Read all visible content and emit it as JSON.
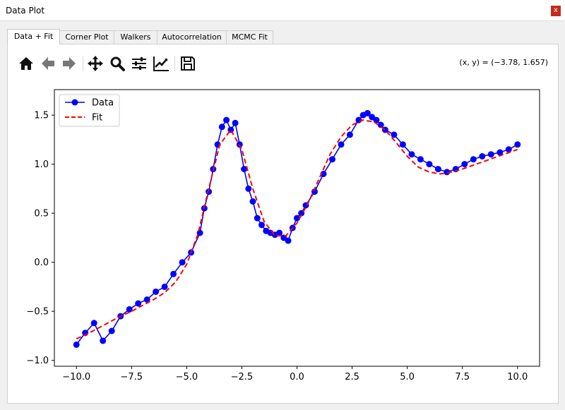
{
  "window": {
    "title": "Data Plot",
    "close_label": "x"
  },
  "tabs": [
    {
      "label": "Data + Fit",
      "active": true
    },
    {
      "label": "Corner Plot",
      "active": false
    },
    {
      "label": "Walkers",
      "active": false
    },
    {
      "label": "Autocorrelation",
      "active": false
    },
    {
      "label": "MCMC Fit",
      "active": false
    }
  ],
  "toolbar": {
    "buttons": [
      "home-icon",
      "back-icon",
      "forward-icon",
      "pan-icon",
      "zoom-icon",
      "configure-subplots-icon",
      "edit-axes-icon",
      "save-icon"
    ],
    "coords_readout": "(x, y) = (−3.78, 1.657)"
  },
  "chart_data": {
    "type": "line",
    "xlim": [
      -11,
      11
    ],
    "ylim": [
      -1.06,
      1.76
    ],
    "xticks": [
      -10.0,
      -7.5,
      -5.0,
      -2.5,
      0.0,
      2.5,
      5.0,
      7.5,
      10.0
    ],
    "xtick_labels": [
      "−10.0",
      "−7.5",
      "−5.0",
      "−2.5",
      "0.0",
      "2.5",
      "5.0",
      "7.5",
      "10.0"
    ],
    "yticks": [
      -1.0,
      -0.5,
      0.0,
      0.5,
      1.0,
      1.5
    ],
    "ytick_labels": [
      "−1.0",
      "−0.5",
      "0.0",
      "0.5",
      "1.0",
      "1.5"
    ],
    "grid": false,
    "legend": {
      "placement": "top-left",
      "entries": [
        "Data",
        "Fit"
      ]
    },
    "colors": {
      "data": "#0000ff",
      "fit": "#ff0000"
    },
    "series": [
      {
        "name": "Data",
        "style": "line-markers",
        "x": [
          -10.0,
          -9.6,
          -9.2,
          -8.8,
          -8.4,
          -8.0,
          -7.6,
          -7.2,
          -6.8,
          -6.4,
          -6.0,
          -5.6,
          -5.2,
          -4.8,
          -4.4,
          -4.2,
          -4.0,
          -3.8,
          -3.6,
          -3.4,
          -3.2,
          -3.0,
          -2.8,
          -2.6,
          -2.4,
          -2.2,
          -2.0,
          -1.8,
          -1.6,
          -1.4,
          -1.2,
          -1.0,
          -0.8,
          -0.6,
          -0.4,
          -0.2,
          0.0,
          0.2,
          0.4,
          0.8,
          1.2,
          1.6,
          2.0,
          2.4,
          2.8,
          3.0,
          3.2,
          3.4,
          3.6,
          3.8,
          4.0,
          4.4,
          4.8,
          5.2,
          5.6,
          6.0,
          6.4,
          6.8,
          7.2,
          7.6,
          8.0,
          8.4,
          8.8,
          9.2,
          9.6,
          10.0
        ],
        "y": [
          -0.84,
          -0.72,
          -0.62,
          -0.8,
          -0.7,
          -0.55,
          -0.48,
          -0.42,
          -0.38,
          -0.3,
          -0.25,
          -0.12,
          0.0,
          0.1,
          0.3,
          0.55,
          0.72,
          0.95,
          1.2,
          1.38,
          1.45,
          1.35,
          1.42,
          1.2,
          0.95,
          0.75,
          0.62,
          0.45,
          0.38,
          0.32,
          0.3,
          0.28,
          0.3,
          0.25,
          0.22,
          0.35,
          0.45,
          0.5,
          0.58,
          0.72,
          0.9,
          1.05,
          1.2,
          1.3,
          1.45,
          1.5,
          1.52,
          1.48,
          1.45,
          1.4,
          1.35,
          1.3,
          1.2,
          1.1,
          1.05,
          1.0,
          0.95,
          0.92,
          0.95,
          1.0,
          1.05,
          1.08,
          1.1,
          1.12,
          1.15,
          1.2
        ]
      },
      {
        "name": "Fit",
        "style": "dashed",
        "x": [
          -10.0,
          -9.5,
          -9.0,
          -8.5,
          -8.0,
          -7.5,
          -7.0,
          -6.5,
          -6.0,
          -5.5,
          -5.0,
          -4.5,
          -4.0,
          -3.5,
          -3.0,
          -2.5,
          -2.0,
          -1.5,
          -1.0,
          -0.5,
          0.0,
          0.5,
          1.0,
          1.5,
          2.0,
          2.5,
          3.0,
          3.5,
          4.0,
          4.5,
          5.0,
          5.5,
          6.0,
          6.5,
          7.0,
          7.5,
          8.0,
          8.5,
          9.0,
          9.5,
          10.0
        ],
        "y": [
          -0.78,
          -0.73,
          -0.67,
          -0.61,
          -0.55,
          -0.5,
          -0.44,
          -0.38,
          -0.31,
          -0.2,
          -0.02,
          0.28,
          0.75,
          1.2,
          1.35,
          1.15,
          0.75,
          0.42,
          0.27,
          0.27,
          0.4,
          0.6,
          0.85,
          1.1,
          1.28,
          1.4,
          1.45,
          1.43,
          1.35,
          1.22,
          1.08,
          0.97,
          0.92,
          0.9,
          0.92,
          0.95,
          0.99,
          1.03,
          1.07,
          1.11,
          1.15
        ]
      }
    ]
  }
}
